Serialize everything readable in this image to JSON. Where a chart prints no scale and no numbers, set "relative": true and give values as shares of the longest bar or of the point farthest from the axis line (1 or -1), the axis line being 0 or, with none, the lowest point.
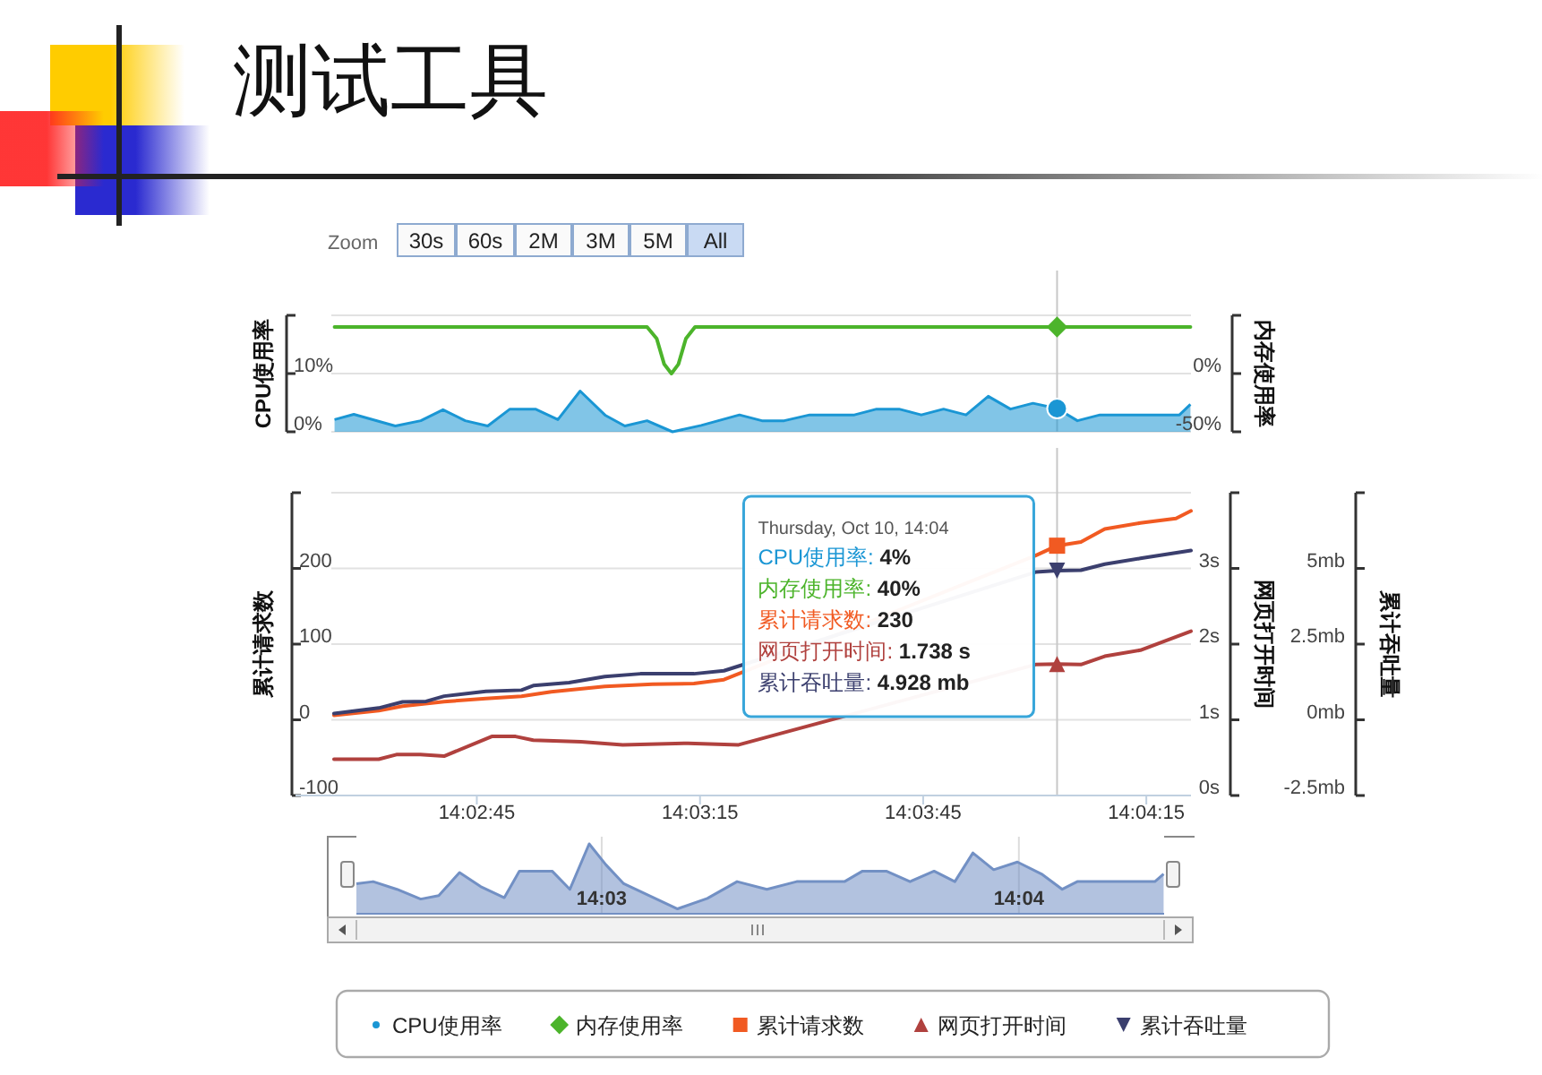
{
  "chart_data": [
    {
      "type": "area",
      "title": "测试工具",
      "ylabel": "CPU使用率",
      "y2label": "内存使用率",
      "xlim": [
        14.0404,
        14.0725
      ],
      "ylim": [
        0,
        20
      ],
      "yticks": [
        {
          "value": 0,
          "label": "0%"
        },
        {
          "value": 10,
          "label": "10%"
        },
        {
          "value": 20,
          "label": null
        }
      ],
      "y2lim": [
        -50,
        50
      ],
      "y2ticks": [
        {
          "value": -50,
          "label": "-50%"
        },
        {
          "value": 0,
          "label": "0%"
        },
        {
          "value": 50,
          "label": null
        }
      ],
      "grid": "y",
      "legend": "bottom",
      "tick_labels": "y",
      "annotations": [
        "Zoom",
        "30s",
        "60s",
        "2M",
        "3M",
        "5M",
        "All"
      ],
      "ref_lines": [
        {
          "axis": "x",
          "value": 14.0675,
          "color": "#c8c8c8"
        }
      ],
      "series": [
        {
          "name": "CPU使用率",
          "color": "#1a96d4",
          "x": [
            14.04052,
            14.04124,
            14.04279,
            14.04374,
            14.04457,
            14.0454,
            14.04624,
            14.04707,
            14.04802,
            14.04886,
            14.04969,
            14.05064,
            14.05136,
            14.05219,
            14.05314,
            14.05421,
            14.05564,
            14.05648,
            14.05731,
            14.05826,
            14.05993,
            14.06076,
            14.0616,
            14.06243,
            14.06326,
            14.0641,
            14.06493,
            14.06576,
            14.0666,
            14.0675,
            14.06826,
            14.0691,
            14.07005,
            14.07207,
            14.07248
          ],
          "values": [
            2.1,
            3,
            1,
            1.9,
            3.8,
            1.9,
            1,
            3.9,
            3.9,
            2.1,
            7,
            2.8,
            1,
            1.9,
            0,
            1.1,
            2.9,
            1.9,
            1.9,
            2.9,
            2.9,
            3.9,
            3.9,
            2.9,
            3.9,
            2.9,
            6.1,
            3.9,
            4.9,
            4,
            1.9,
            2.9,
            2.9,
            2.9,
            4.7
          ]
        },
        {
          "name": "内存使用率",
          "type": "line",
          "axis": "y2",
          "color": "#4cb42b",
          "x": [
            14.04052,
            14.05219,
            14.05255,
            14.05283,
            14.0531,
            14.05336,
            14.05364,
            14.05398,
            14.0675,
            14.07248
          ],
          "values": [
            40,
            40,
            30,
            8,
            0,
            8,
            30,
            40,
            40,
            40
          ]
        }
      ]
    },
    {
      "type": "line",
      "ylabel": "累计请求数",
      "y2label": "网页打开时间",
      "y3label": "累计吞吐量",
      "xlim": [
        14.0404,
        14.0725
      ],
      "ylim": [
        -100,
        300
      ],
      "yticks": [
        -100,
        0,
        100,
        200,
        {
          "value": 300,
          "label": null
        }
      ],
      "y2lim": [
        0,
        4
      ],
      "y2ticks": [
        {
          "value": 0,
          "label": "0s"
        },
        {
          "value": 1,
          "label": "1s"
        },
        {
          "value": 2,
          "label": "2s"
        },
        {
          "value": 3,
          "label": "3s"
        },
        {
          "value": 4,
          "label": null
        }
      ],
      "y3lim": [
        -2.5,
        7.5
      ],
      "y3ticks": [
        {
          "value": -2.5,
          "label": "-2.5mb"
        },
        {
          "value": 0,
          "label": "0mb"
        },
        {
          "value": 2.5,
          "label": "2.5mb"
        },
        {
          "value": 5,
          "label": "5mb"
        },
        {
          "value": 7.5,
          "label": null
        }
      ],
      "xticks": [
        {
          "value": 14.045833,
          "label": "14:02:45"
        },
        {
          "value": 14.054167,
          "label": "14:03:15"
        },
        {
          "value": 14.0625,
          "label": "14:03:45"
        },
        {
          "value": 14.070833,
          "label": "14:04:15"
        }
      ],
      "grid": "y",
      "legend": "bottom",
      "ref_lines": [
        {
          "axis": "x",
          "value": 14.0675,
          "color": "#c8c8c8"
        }
      ],
      "annotations": [
        "Thursday, Oct 10, 14:04",
        "CPU使用率: 4%",
        "内存使用率: 40%",
        "累计请求数: 230",
        "网页打开时间: 1.738 s",
        "累计吞吐量: 4.928 mb"
      ],
      "series": [
        {
          "name": "累计请求数",
          "color": "#f15a22",
          "x": [
            14.0405,
            14.04217,
            14.04306,
            14.04461,
            14.04617,
            14.0475,
            14.04861,
            14.05061,
            14.05239,
            14.05394,
            14.05506,
            14.0667,
            14.0675,
            14.06839,
            14.06928,
            14.07061,
            14.07194,
            14.0725
          ],
          "values": [
            6,
            12,
            18,
            24,
            28,
            31,
            37,
            44,
            47,
            48,
            53,
            217,
            230,
            235,
            252,
            260,
            266,
            276
          ]
        },
        {
          "name": "网页打开时间",
          "axis": "y2",
          "color": "#b0413e",
          "x": [
            14.0405,
            14.04217,
            14.04283,
            14.04372,
            14.04461,
            14.04639,
            14.04728,
            14.04794,
            14.04972,
            14.05128,
            14.05372,
            14.05561,
            14.0667,
            14.0675,
            14.06839,
            14.06928,
            14.07061,
            14.0725
          ],
          "values": [
            0.48,
            0.48,
            0.54,
            0.54,
            0.52,
            0.78,
            0.78,
            0.73,
            0.71,
            0.67,
            0.69,
            0.67,
            1.73,
            1.738,
            1.73,
            1.84,
            1.92,
            2.17
          ]
        },
        {
          "name": "累计吞吐量",
          "axis": "y3",
          "color": "#3b3f6e",
          "x": [
            14.0405,
            14.04217,
            14.04306,
            14.04394,
            14.04461,
            14.04617,
            14.0475,
            14.04794,
            14.04928,
            14.05061,
            14.05194,
            14.05394,
            14.05506,
            14.0667,
            14.0675,
            14.06839,
            14.06928,
            14.07061,
            14.0725
          ],
          "values": [
            0.21,
            0.39,
            0.59,
            0.61,
            0.78,
            0.94,
            0.98,
            1.13,
            1.23,
            1.43,
            1.52,
            1.52,
            1.62,
            4.88,
            4.928,
            4.94,
            5.14,
            5.33,
            5.59
          ]
        }
      ]
    },
    {
      "type": "area",
      "relative": true,
      "xlim": [
        14.0402,
        14.07247
      ],
      "xticks": [
        {
          "value": 14.05,
          "label": "14:03"
        },
        {
          "value": 14.066667,
          "label": "14:04"
        }
      ],
      "grid": "x",
      "tick_labels": "x",
      "series": [
        {
          "color": "#7290c4",
          "x": [
            14.0402,
            14.04087,
            14.04182,
            14.04277,
            14.04349,
            14.04432,
            14.04516,
            14.04611,
            14.04671,
            14.04802,
            14.04873,
            14.0495,
            14.05017,
            14.05088,
            14.05303,
            14.05422,
            14.05541,
            14.0566,
            14.05779,
            14.0597,
            14.06042,
            14.06137,
            14.06232,
            14.06328,
            14.06411,
            14.06483,
            14.06566,
            14.06661,
            14.06757,
            14.0684,
            14.069,
            14.07043,
            14.0721,
            14.07245
          ],
          "values": [
            0.43,
            0.46,
            0.35,
            0.21,
            0.26,
            0.59,
            0.39,
            0.23,
            0.61,
            0.61,
            0.35,
            1,
            0.7,
            0.43,
            0.07,
            0.22,
            0.46,
            0.35,
            0.46,
            0.46,
            0.61,
            0.61,
            0.46,
            0.61,
            0.46,
            0.87,
            0.63,
            0.74,
            0.57,
            0.35,
            0.46,
            0.46,
            0.46,
            0.57
          ]
        }
      ]
    }
  ]
}
